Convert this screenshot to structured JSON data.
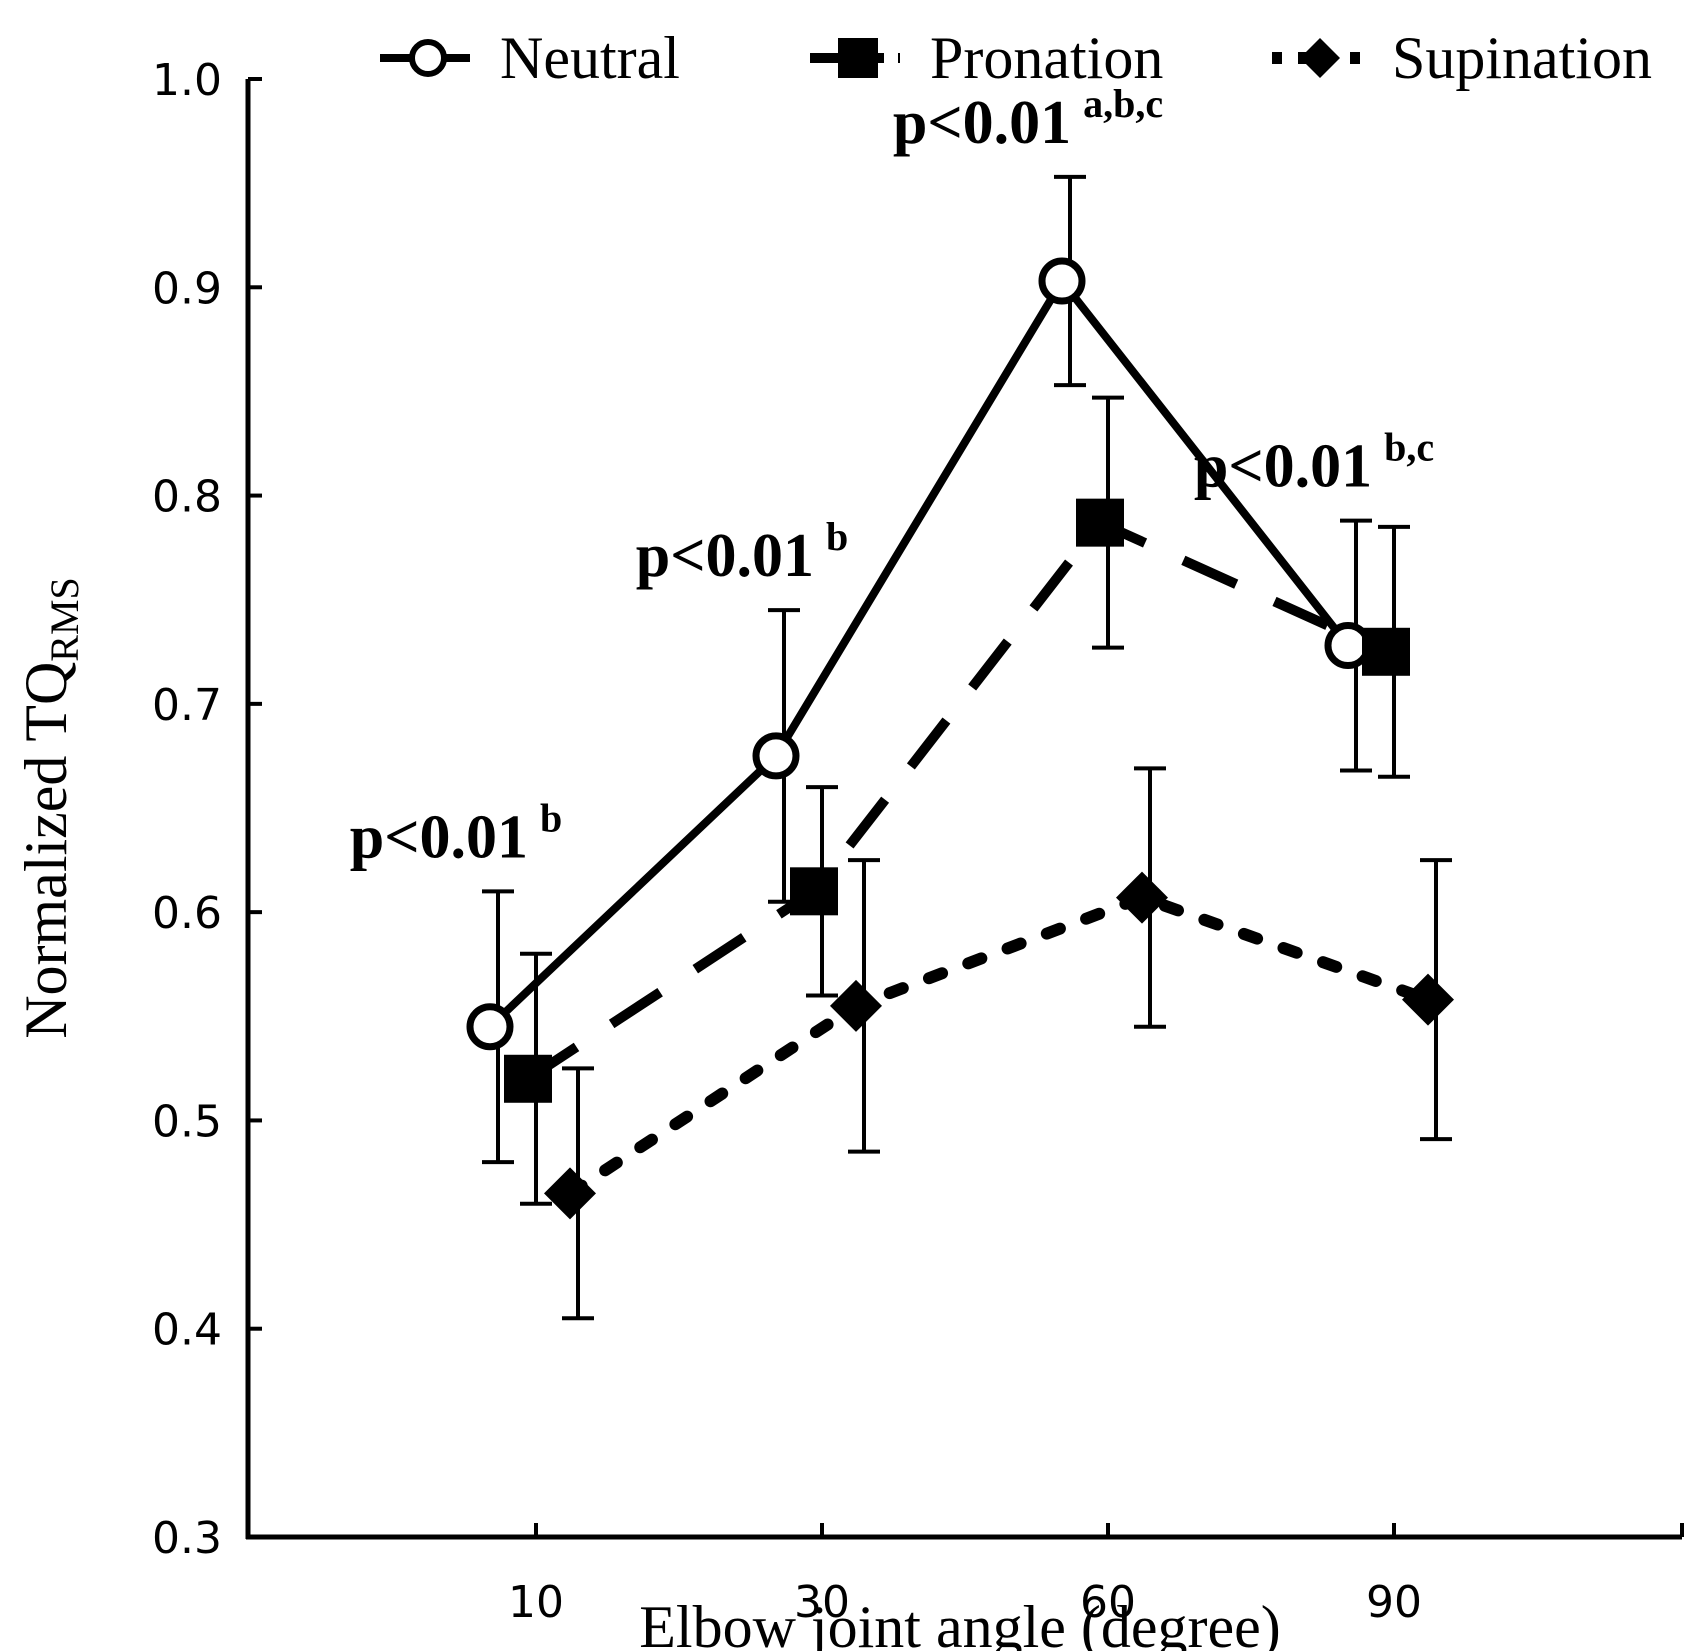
{
  "chart_data": {
    "type": "line",
    "title": "",
    "xlabel": "Elbow joint angle (degree)",
    "ylabel": {
      "main": "Normalized TQ",
      "sub": "RMS"
    },
    "ylim": [
      0.3,
      1.0
    ],
    "y_ticks": [
      "0.3",
      "0.4",
      "0.5",
      "0.6",
      "0.7",
      "0.8",
      "0.9",
      "1.0"
    ],
    "categories": [
      "10",
      "30",
      "60",
      "90"
    ],
    "legend_position": "top",
    "series": [
      {
        "name": "Neutral",
        "marker": "open-circle",
        "line": "solid",
        "values": [
          0.545,
          0.675,
          0.903,
          0.728
        ],
        "errors": [
          0.065,
          0.07,
          0.05,
          0.06
        ]
      },
      {
        "name": "Pronation",
        "marker": "filled-square",
        "line": "dashed",
        "values": [
          0.52,
          0.61,
          0.787,
          0.725
        ],
        "errors": [
          0.06,
          0.05,
          0.06,
          0.06
        ]
      },
      {
        "name": "Supination",
        "marker": "filled-diamond",
        "line": "dotted",
        "values": [
          0.465,
          0.555,
          0.607,
          0.558
        ],
        "errors": [
          0.06,
          0.07,
          0.062,
          0.067
        ]
      }
    ],
    "annotations": [
      {
        "text": "p<0.01",
        "sup": "b",
        "category_index": 0
      },
      {
        "text": "p<0.01",
        "sup": "b",
        "category_index": 1
      },
      {
        "text": "p<0.01",
        "sup": "a,b,c",
        "category_index": 2
      },
      {
        "text": "p<0.01",
        "sup": "b,c",
        "category_index": 3
      }
    ]
  }
}
